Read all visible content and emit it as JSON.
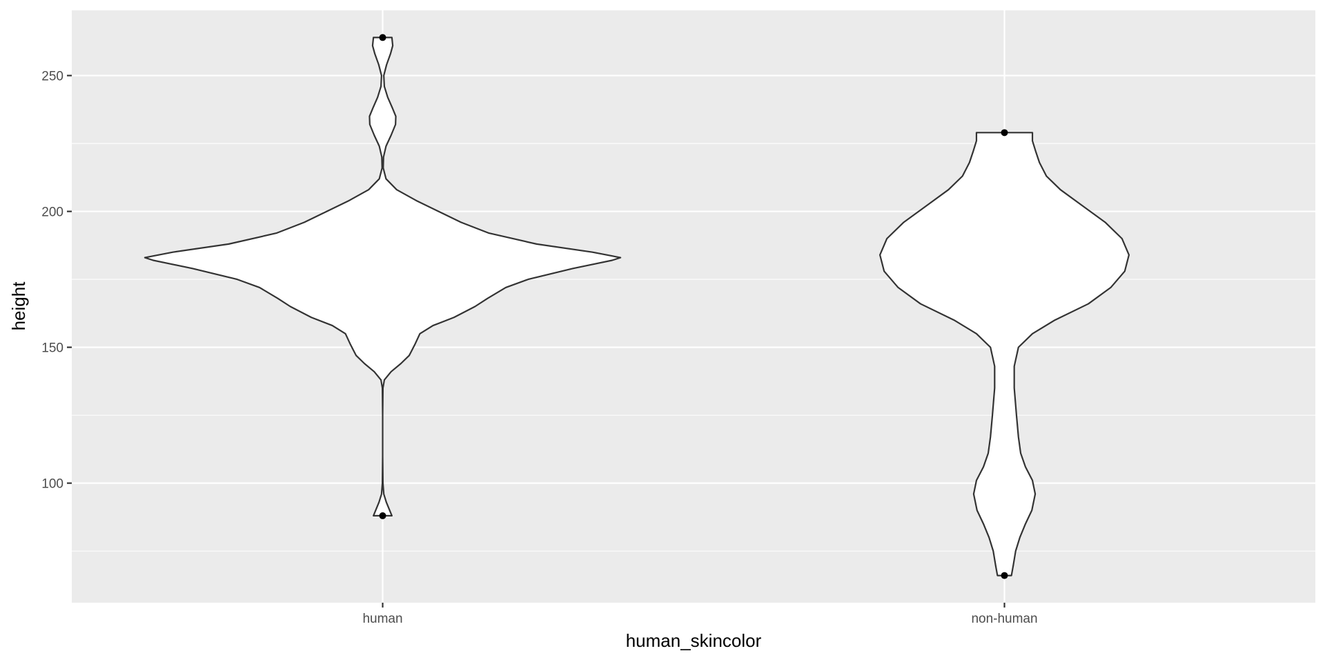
{
  "chart_data": {
    "type": "violin",
    "xlabel": "human_skincolor",
    "ylabel": "height",
    "categories": [
      "human",
      "non-human"
    ],
    "ylim": [
      56,
      274
    ],
    "yticks": [
      100,
      150,
      200,
      250
    ],
    "grid": true,
    "panel_background": "#ebebeb",
    "grid_color": "#ffffff",
    "violin_fill": "#ffffff",
    "violin_stroke": "#333333",
    "violins": [
      {
        "category": "human",
        "min": 88,
        "max": 264,
        "profile": [
          [
            88,
            0.033
          ],
          [
            90,
            0.025
          ],
          [
            93,
            0.013
          ],
          [
            96,
            0.004
          ],
          [
            100,
            0.001
          ],
          [
            110,
            0.0
          ],
          [
            125,
            0.0
          ],
          [
            135,
            0.001
          ],
          [
            138,
            0.006
          ],
          [
            141,
            0.03
          ],
          [
            144,
            0.065
          ],
          [
            147,
            0.095
          ],
          [
            151,
            0.115
          ],
          [
            155,
            0.133
          ],
          [
            158,
            0.18
          ],
          [
            161,
            0.255
          ],
          [
            165,
            0.33
          ],
          [
            168,
            0.375
          ],
          [
            172,
            0.44
          ],
          [
            175,
            0.52
          ],
          [
            179,
            0.68
          ],
          [
            182,
            0.82
          ],
          [
            183,
            0.85
          ],
          [
            185,
            0.75
          ],
          [
            188,
            0.55
          ],
          [
            192,
            0.38
          ],
          [
            196,
            0.28
          ],
          [
            200,
            0.2
          ],
          [
            204,
            0.12
          ],
          [
            208,
            0.05
          ],
          [
            212,
            0.012
          ],
          [
            216,
            0.002
          ],
          [
            220,
            0.003
          ],
          [
            224,
            0.012
          ],
          [
            228,
            0.03
          ],
          [
            232,
            0.046
          ],
          [
            235,
            0.047
          ],
          [
            238,
            0.035
          ],
          [
            242,
            0.018
          ],
          [
            246,
            0.006
          ],
          [
            250,
            0.004
          ],
          [
            254,
            0.014
          ],
          [
            258,
            0.028
          ],
          [
            261,
            0.036
          ],
          [
            264,
            0.033
          ]
        ]
      },
      {
        "category": "non-human",
        "min": 66,
        "max": 229,
        "profile": [
          [
            66,
            0.025
          ],
          [
            70,
            0.032
          ],
          [
            75,
            0.04
          ],
          [
            80,
            0.055
          ],
          [
            85,
            0.075
          ],
          [
            90,
            0.098
          ],
          [
            96,
            0.11
          ],
          [
            101,
            0.1
          ],
          [
            106,
            0.075
          ],
          [
            111,
            0.058
          ],
          [
            117,
            0.05
          ],
          [
            125,
            0.043
          ],
          [
            135,
            0.035
          ],
          [
            143,
            0.035
          ],
          [
            150,
            0.05
          ],
          [
            155,
            0.1
          ],
          [
            160,
            0.18
          ],
          [
            166,
            0.3
          ],
          [
            172,
            0.38
          ],
          [
            178,
            0.43
          ],
          [
            184,
            0.445
          ],
          [
            190,
            0.42
          ],
          [
            196,
            0.36
          ],
          [
            202,
            0.28
          ],
          [
            208,
            0.2
          ],
          [
            213,
            0.15
          ],
          [
            218,
            0.125
          ],
          [
            222,
            0.112
          ],
          [
            226,
            0.1
          ],
          [
            229,
            0.1
          ]
        ]
      }
    ],
    "outlier_points": [
      {
        "category": "human",
        "y": 264
      },
      {
        "category": "human",
        "y": 88
      },
      {
        "category": "non-human",
        "y": 229
      },
      {
        "category": "non-human",
        "y": 66
      }
    ]
  }
}
